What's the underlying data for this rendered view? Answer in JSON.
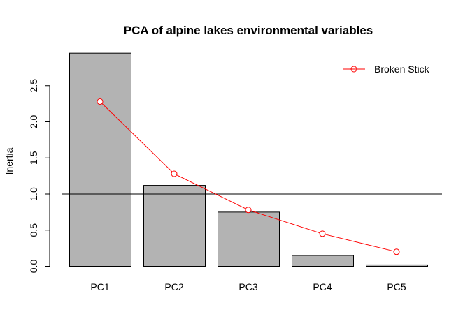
{
  "chart_data": {
    "type": "bar",
    "title": "PCA of alpine lakes environmental variables",
    "xlabel": "",
    "ylabel": "Inertia",
    "categories": [
      "PC1",
      "PC2",
      "PC3",
      "PC4",
      "PC5"
    ],
    "values": [
      2.95,
      1.12,
      0.75,
      0.15,
      0.02
    ],
    "ylim": [
      0,
      2.95
    ],
    "yticks": [
      "0.0",
      "0.5",
      "1.0",
      "1.5",
      "2.0",
      "2.5"
    ],
    "reference_line": 1.0,
    "overlay_series": {
      "name": "Broken Stick",
      "type": "line",
      "color": "#ff0000",
      "values": [
        2.28,
        1.28,
        0.78,
        0.45,
        0.2
      ]
    },
    "bar_color": "#b3b3b3",
    "legend_position": "top-right",
    "grid": false
  }
}
